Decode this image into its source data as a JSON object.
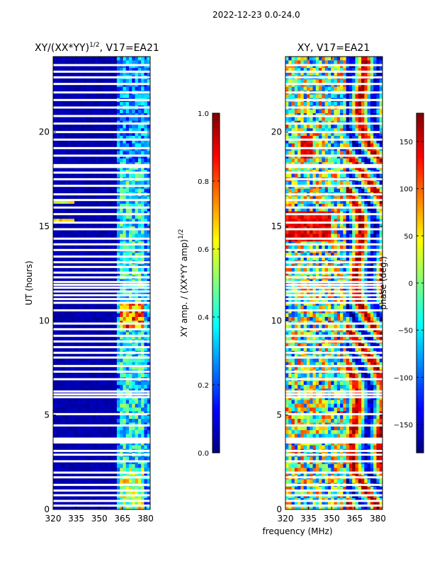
{
  "suptitle": "2022-12-23 0.0-24.0",
  "xlabel": "frequency (MHz)",
  "colors": {
    "jet": [
      "#00007f",
      "#0000ff",
      "#007fff",
      "#00ffff",
      "#7fff7f",
      "#ffff00",
      "#ff7f00",
      "#ff0000",
      "#7f0000"
    ],
    "gap": "#ffffff",
    "frame": "#000000"
  },
  "chart_data": [
    {
      "type": "heatmap",
      "title_main": "XY/(XX*YY)",
      "title_sup": "1/2",
      "title_rest": ", V17=EA21",
      "xlabel": "",
      "ylabel": "UT (hours)",
      "xlim": [
        320,
        383
      ],
      "ylim": [
        0,
        24
      ],
      "x_ticks": [
        320,
        335,
        350,
        365,
        380
      ],
      "y_ticks": [
        0,
        5,
        10,
        15,
        20
      ],
      "flagged_hours": [
        0.2,
        0.45,
        0.75,
        1.0,
        1.3,
        1.7,
        1.95,
        2.55,
        2.9,
        3.1,
        3.55,
        3.65,
        3.75,
        4.45,
        5.05,
        5.95,
        6.1,
        6.25,
        6.9,
        7.3,
        7.6,
        8.05,
        8.3,
        8.6,
        8.9,
        9.2,
        9.55,
        9.85,
        10.55,
        10.95,
        11.15,
        11.35,
        11.55,
        11.75,
        11.9,
        12.05,
        12.3,
        12.55,
        12.85,
        13.1,
        13.4,
        13.75,
        14.05,
        14.35,
        14.85,
        15.2,
        15.65,
        16.0,
        16.4,
        16.7,
        17.15,
        17.5,
        17.85,
        18.15,
        18.25,
        18.75,
        19.15,
        19.6,
        20.0,
        20.45,
        20.85,
        21.3,
        21.7,
        22.1,
        22.55,
        22.9,
        23.2,
        23.55
      ]
    },
    {
      "type": "colorbar",
      "label": "XY amp. / (XX*YY amp)",
      "label_sup": "1/2",
      "range": [
        0.0,
        1.0
      ],
      "ticks": [
        "0.0",
        "0.2",
        "0.4",
        "0.6",
        "0.8",
        "1.0"
      ]
    },
    {
      "type": "heatmap",
      "title": "XY, V17=EA21",
      "xlim": [
        320,
        383
      ],
      "ylim": [
        0,
        24
      ],
      "x_ticks": [
        320,
        335,
        350,
        365,
        380
      ],
      "y_ticks": [
        0,
        5,
        10,
        15,
        20
      ]
    },
    {
      "type": "colorbar",
      "label": "phase (deg.)",
      "range": [
        -180,
        180
      ],
      "ticks": [
        "−150",
        "−100",
        "−50",
        "0",
        "50",
        "100",
        "150"
      ]
    }
  ]
}
